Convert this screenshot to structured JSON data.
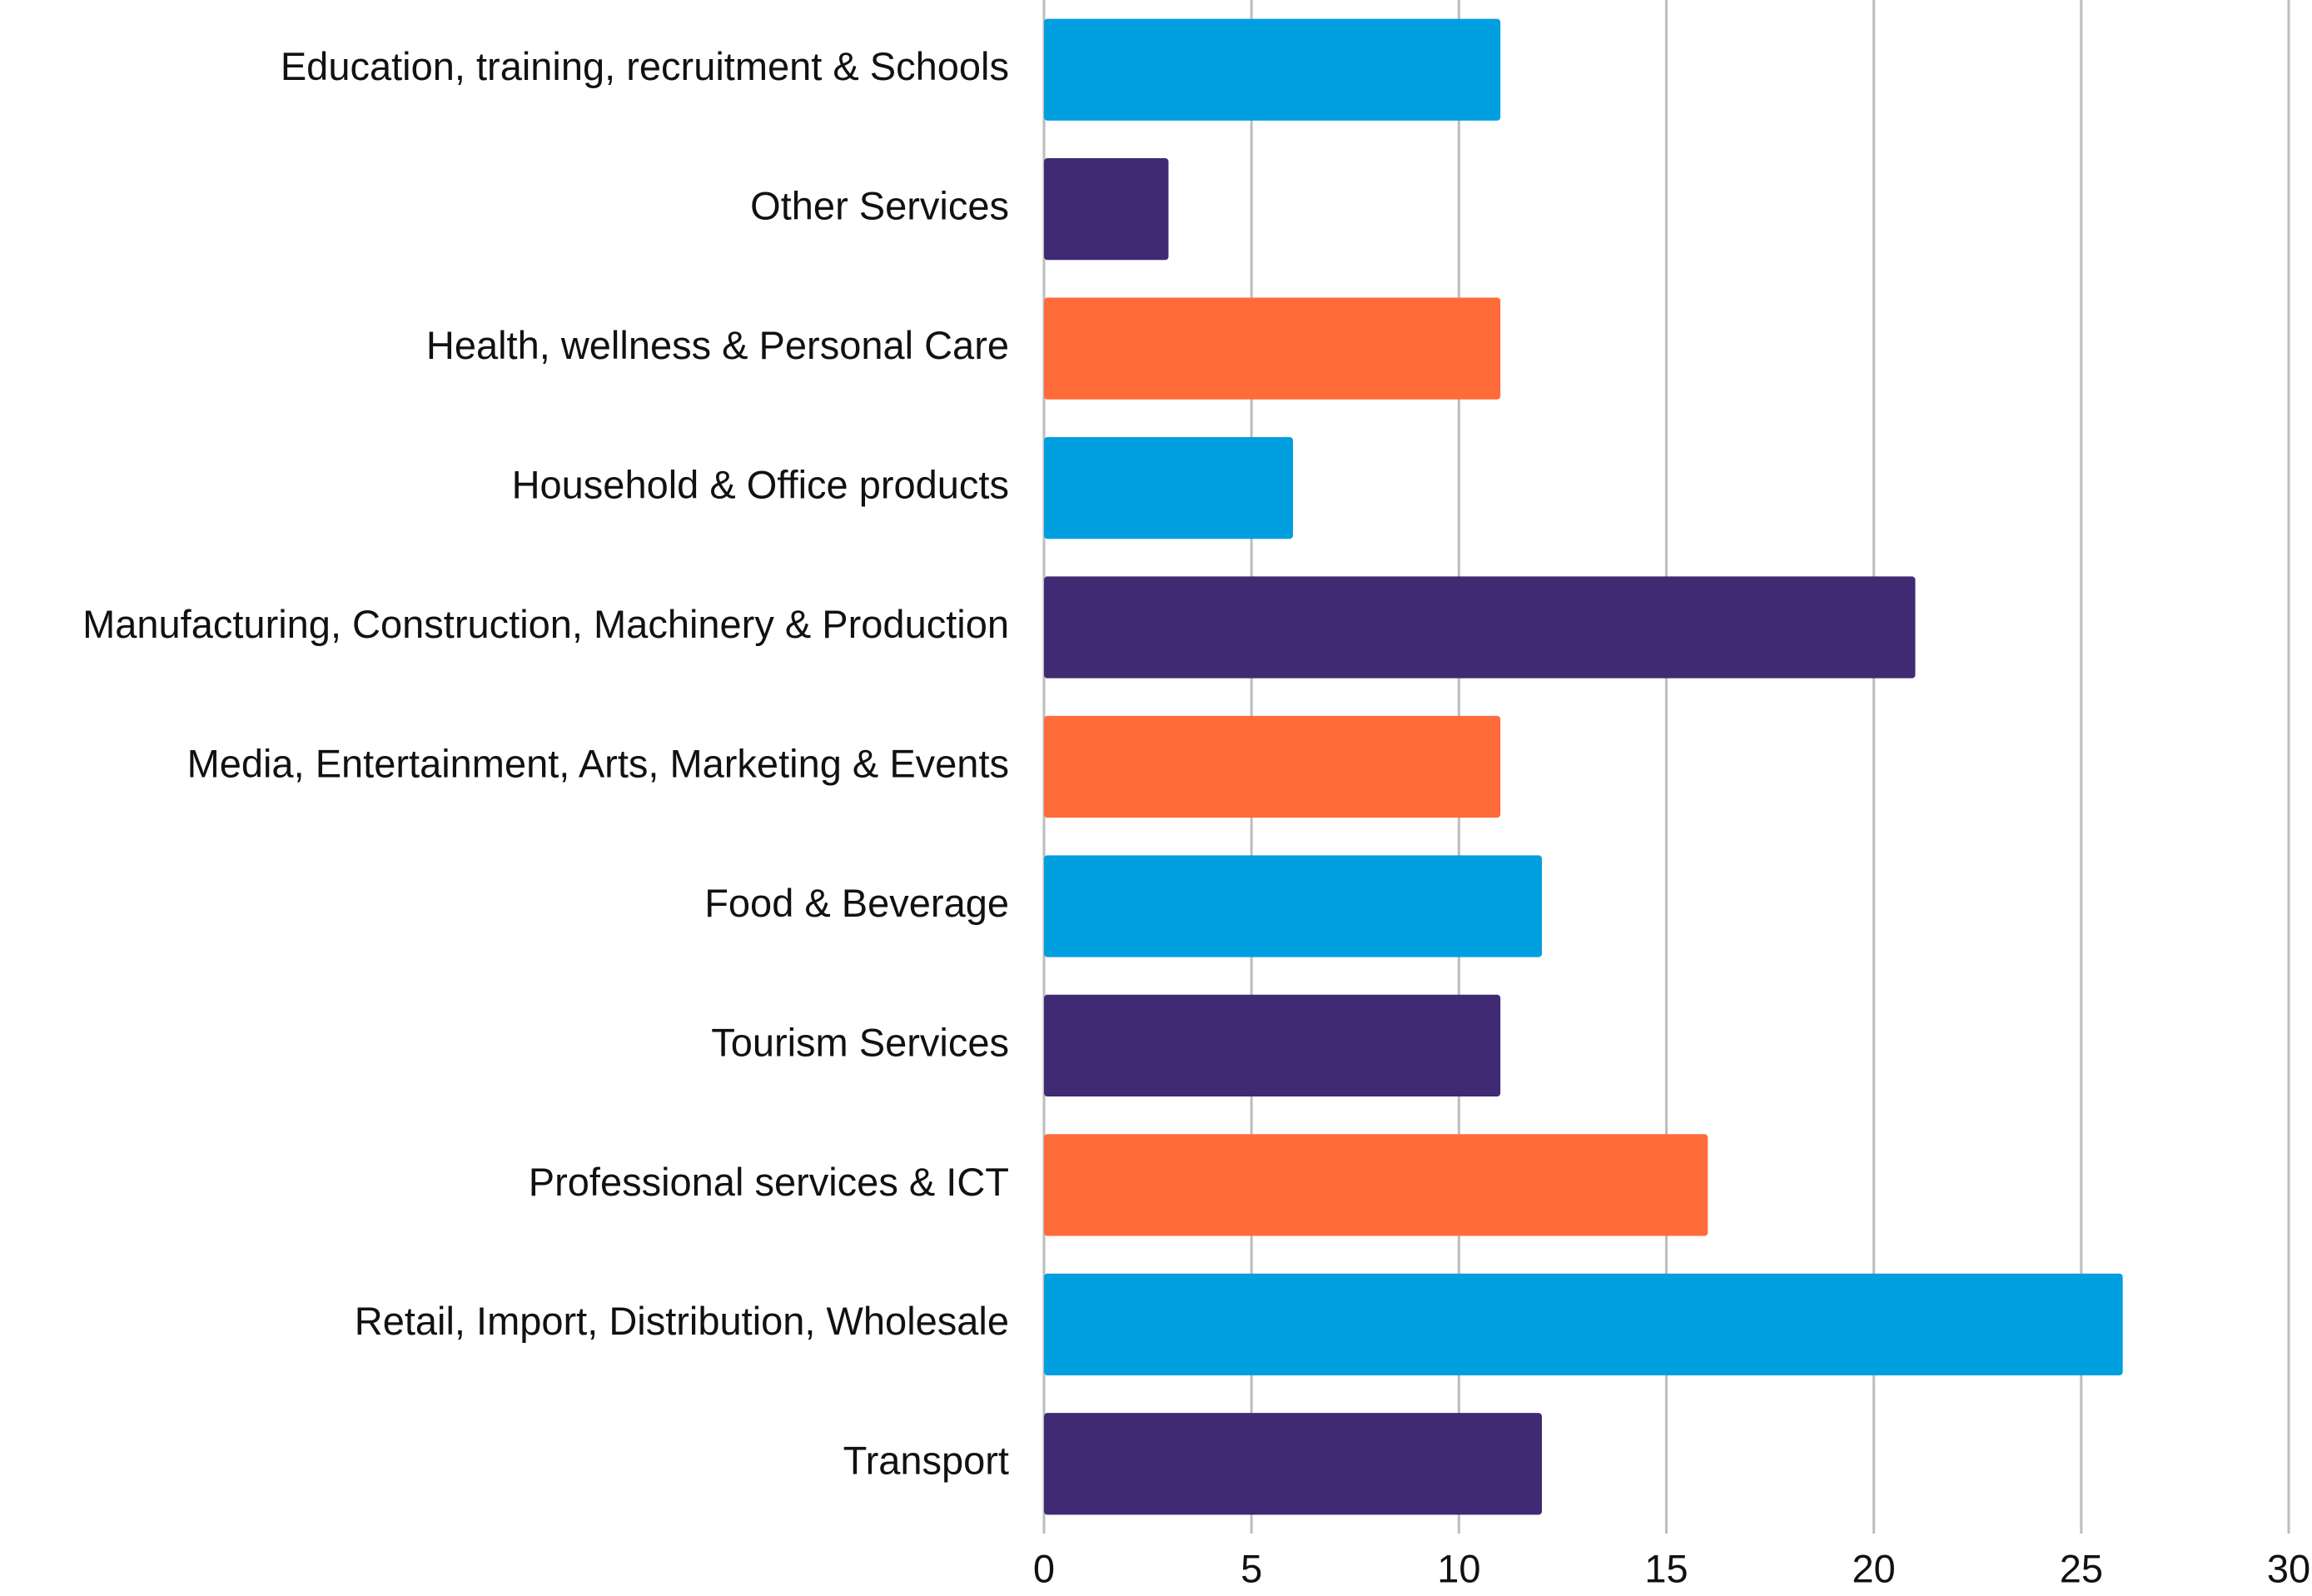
{
  "chart_data": {
    "type": "barh",
    "categories": [
      "Education, training, recruitment & Schools",
      "Other Services",
      "Health, wellness & Personal Care",
      "Household & Office products",
      "Manufacturing, Construction, Machinery & Production",
      "Media, Entertainment, Arts, Marketing & Events",
      "Food & Beverage",
      "Tourism Services",
      "Professional services & ICT",
      "Retail, Import, Distribution, Wholesale",
      "Transport"
    ],
    "values": [
      11,
      3,
      11,
      6,
      21,
      11,
      12,
      11,
      16,
      26,
      12
    ],
    "colors": [
      "#009fdf",
      "#3f2a73",
      "#ff6b39",
      "#009fdf",
      "#3f2a73",
      "#ff6b39",
      "#009fdf",
      "#3f2a73",
      "#ff6b39",
      "#009fdf",
      "#3f2a73"
    ],
    "xlim": [
      0,
      30
    ],
    "xticks": [
      0,
      5,
      10,
      15,
      20,
      25,
      30
    ],
    "grid": true
  }
}
